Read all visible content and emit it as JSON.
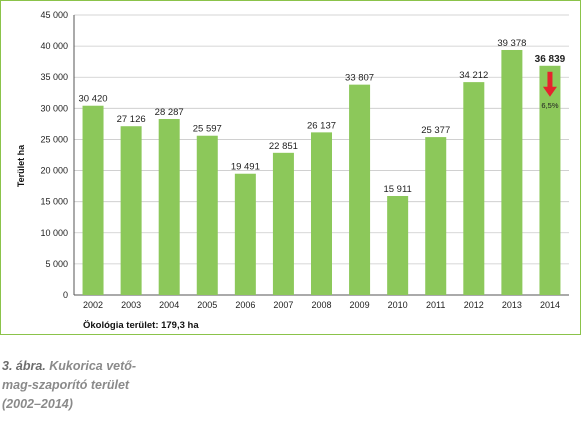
{
  "chart_data": {
    "type": "bar",
    "categories": [
      "2002",
      "2003",
      "2004",
      "2005",
      "2006",
      "2007",
      "2008",
      "2009",
      "2010",
      "2011",
      "2012",
      "2013",
      "2014"
    ],
    "values": [
      30420,
      27126,
      28287,
      25597,
      19491,
      22851,
      26137,
      33807,
      15911,
      25377,
      34212,
      39378,
      36839
    ],
    "value_labels": [
      "30 420",
      "27 126",
      "28 287",
      "25 597",
      "19 491",
      "22 851",
      "26 137",
      "33 807",
      "15 911",
      "25 377",
      "34 212",
      "39 378",
      "36 839"
    ],
    "ylabel": "Terület ha",
    "ylim": [
      0,
      45000
    ],
    "yticks": [
      0,
      5000,
      10000,
      15000,
      20000,
      25000,
      30000,
      35000,
      40000,
      45000
    ],
    "ytick_labels": [
      "0",
      "5 000",
      "10 000",
      "15 000",
      "20 000",
      "25 000",
      "30 000",
      "35 000",
      "40 000",
      "45 000"
    ],
    "grid": true,
    "bar_color": "#8cc85a",
    "annotation": {
      "category": "2014",
      "text": "6,5%",
      "arrow": "down",
      "color": "#e5232d"
    }
  },
  "note": "Ökológia terület: 179,3 ha",
  "caption": {
    "number": "3. ábra.",
    "text": "Kukorica vető-mag-szaporító terület (2002–2014)",
    "lines": [
      "Kukorica vető-",
      "mag-szaporító terület",
      "(2002–2014)"
    ]
  }
}
